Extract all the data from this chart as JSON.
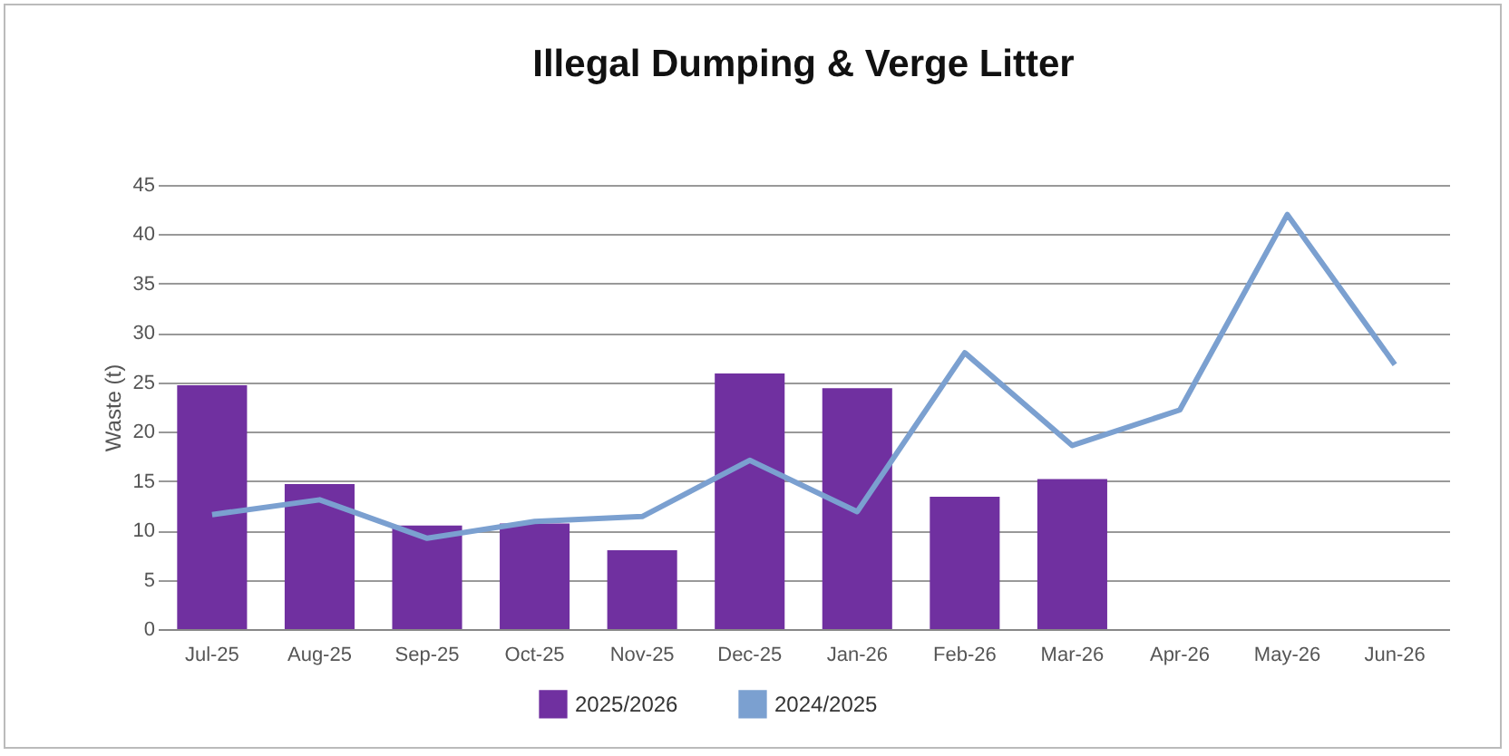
{
  "chart_data": {
    "type": "bar",
    "title": "Illegal Dumping & Verge Litter",
    "ylabel": "Waste (t)",
    "categories": [
      "Jul-25",
      "Aug-25",
      "Sep-25",
      "Oct-25",
      "Nov-25",
      "Dec-25",
      "Jan-26",
      "Feb-26",
      "Mar-26",
      "Apr-26",
      "May-26",
      "Jun-26"
    ],
    "series": [
      {
        "name": "2025/2026",
        "color": "#7030a0",
        "values": [
          24.7,
          14.7,
          10.5,
          10.7,
          8.0,
          25.9,
          24.4,
          13.4,
          15.2,
          null,
          null,
          null
        ]
      },
      {
        "name": "2024/2025",
        "type": "line",
        "color": "#7ba0d0",
        "values": [
          11.6,
          13.1,
          9.2,
          10.9,
          11.4,
          17.1,
          11.9,
          28.0,
          18.6,
          22.2,
          42.0,
          26.8
        ]
      }
    ],
    "ylim": [
      0,
      45
    ],
    "yticks": [
      0,
      5,
      10,
      15,
      20,
      25,
      30,
      35,
      40,
      45
    ],
    "grid": "y",
    "legend": "bottom"
  }
}
